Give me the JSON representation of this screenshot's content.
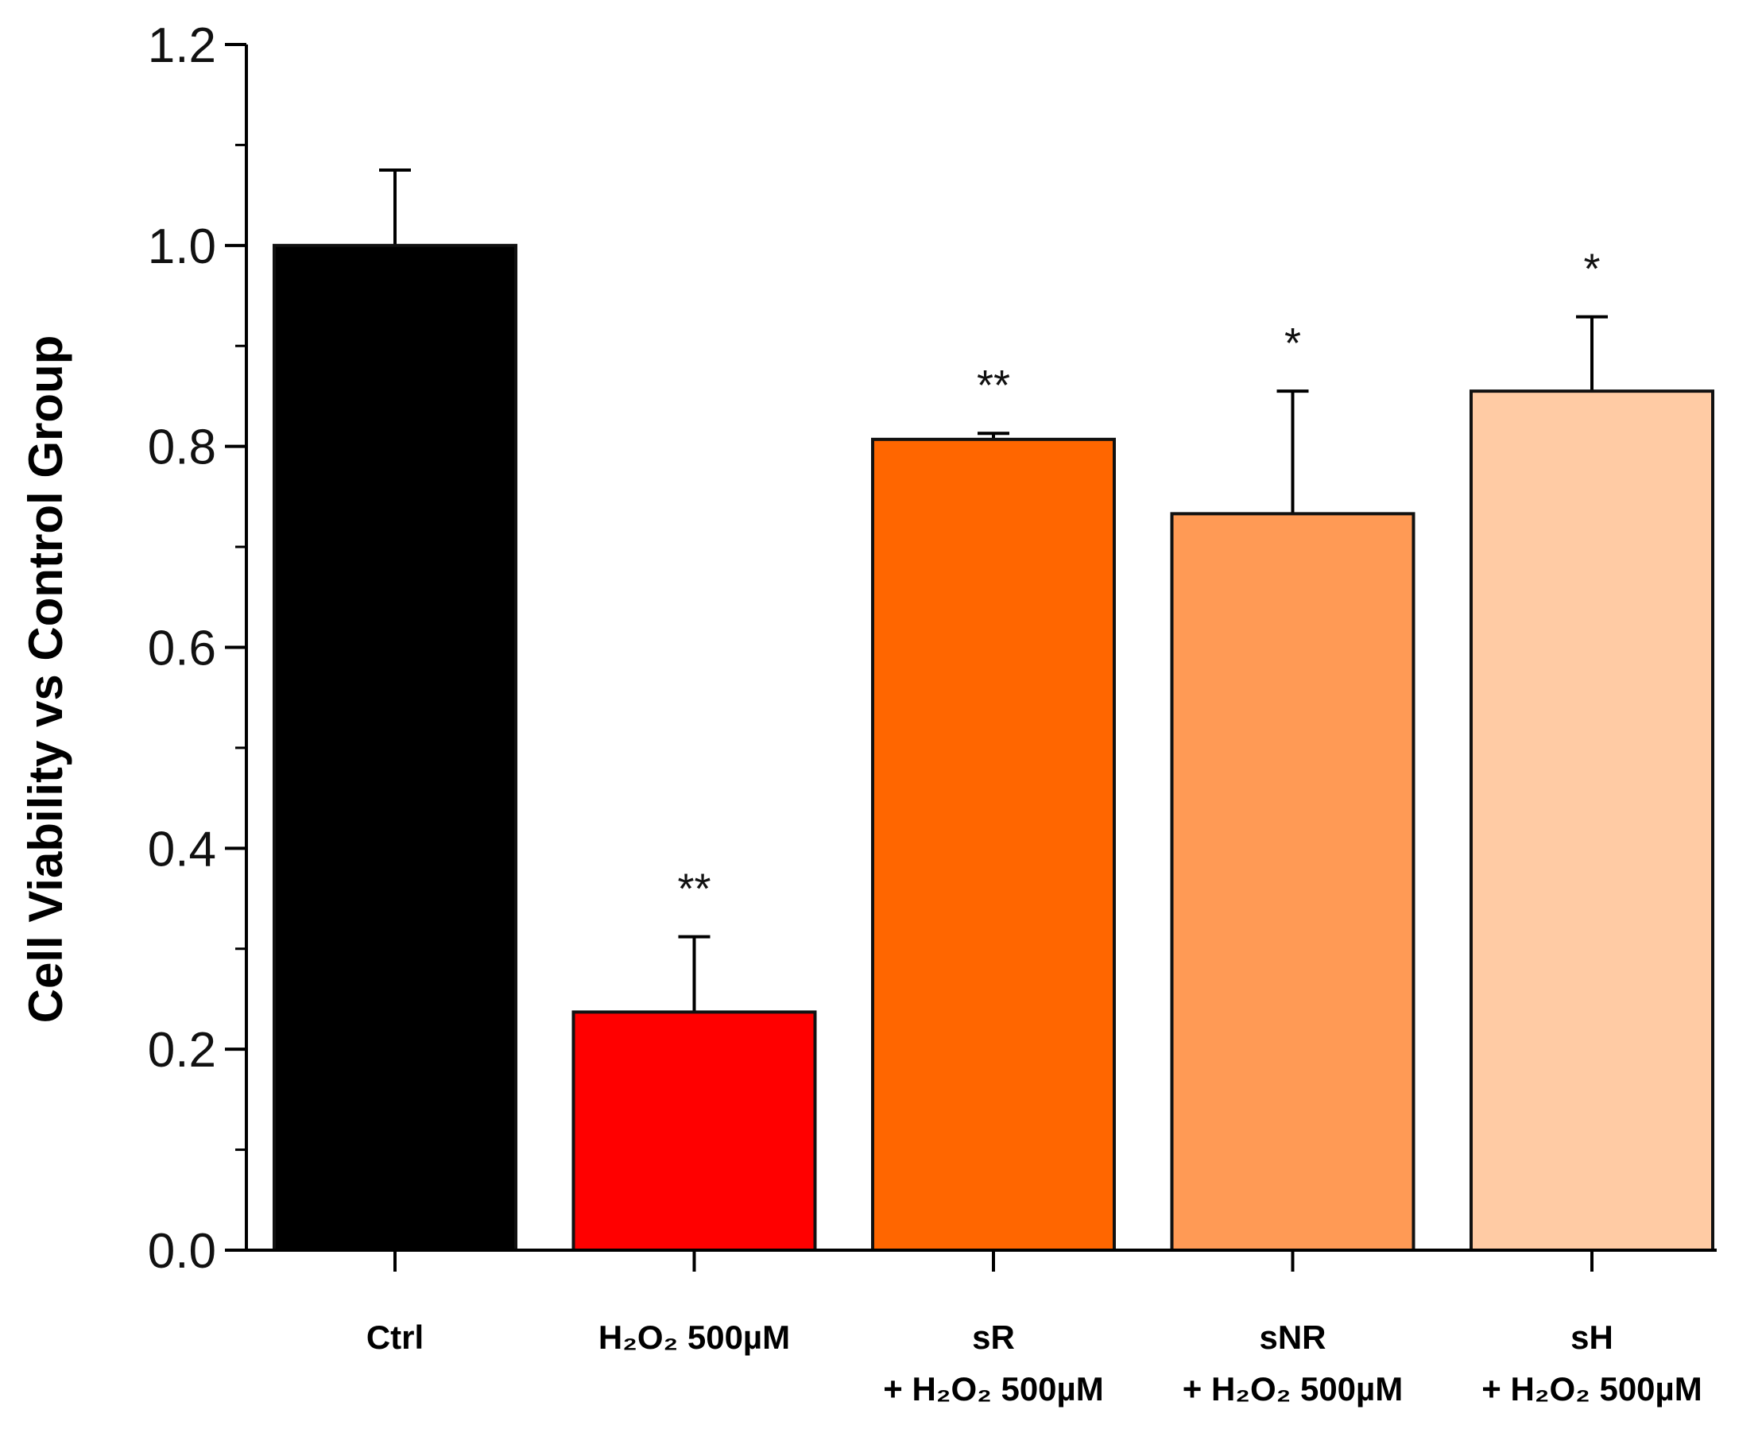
{
  "chart_data": {
    "type": "bar",
    "title": "",
    "xlabel": "",
    "ylabel": "Cell Viability vs Control Group",
    "ylim": [
      0,
      1.2
    ],
    "ytick_labels": [
      "0.0",
      "0.2",
      "0.4",
      "0.6",
      "0.8",
      "1.0",
      "1.2"
    ],
    "ytick_values": [
      0,
      0.2,
      0.4,
      0.6,
      0.8,
      1.0,
      1.2
    ],
    "minor_tick_step": 0.1,
    "grid": false,
    "bars": [
      {
        "label_line1": "Ctrl",
        "label_line2": "",
        "value": 1.0,
        "error": 0.075,
        "significance": "",
        "color": "#000000"
      },
      {
        "label_line1": "H₂O₂ 500µM",
        "label_line2": "",
        "value": 0.237,
        "error": 0.075,
        "significance": "**",
        "color": "#ff0000"
      },
      {
        "label_line1": "sR",
        "label_line2": "+ H₂O₂ 500µM",
        "value": 0.807,
        "error": 0.006,
        "significance": "**",
        "color": "#ff6600"
      },
      {
        "label_line1": "sNR",
        "label_line2": "+ H₂O₂ 500µM",
        "value": 0.733,
        "error": 0.122,
        "significance": "*",
        "color": "#ff9a55"
      },
      {
        "label_line1": "sH",
        "label_line2": "+ H₂O₂ 500µM",
        "value": 0.855,
        "error": 0.074,
        "significance": "*",
        "color": "#ffcba4"
      }
    ]
  }
}
